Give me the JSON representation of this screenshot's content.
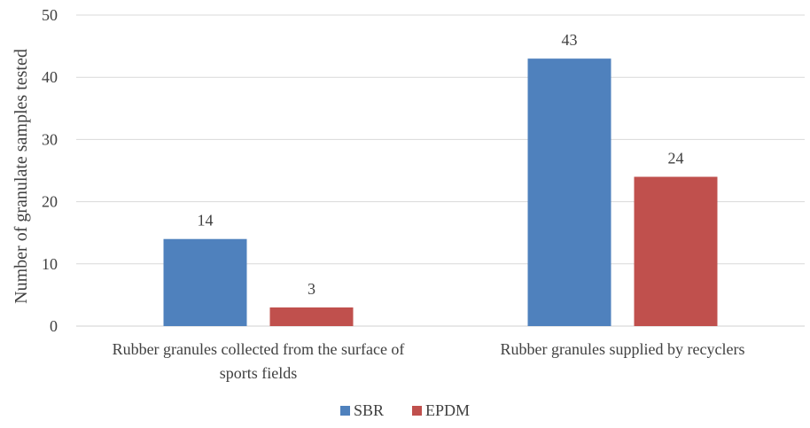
{
  "chart_data": {
    "type": "bar",
    "title": "",
    "xlabel": "",
    "ylabel": "Number of granulate samples tested",
    "ylim": [
      0,
      50
    ],
    "yticks": [
      0,
      10,
      20,
      30,
      40,
      50
    ],
    "grid": true,
    "legend_position": "bottom",
    "categories": [
      [
        "Rubber granules collected from the surface of",
        "sports fields"
      ],
      [
        "Rubber granules supplied by recyclers"
      ]
    ],
    "series": [
      {
        "name": "SBR",
        "color": "#4f81bd",
        "values": [
          14,
          43
        ]
      },
      {
        "name": "EPDM",
        "color": "#c0504d",
        "values": [
          3,
          24
        ]
      }
    ],
    "data_labels": true
  }
}
